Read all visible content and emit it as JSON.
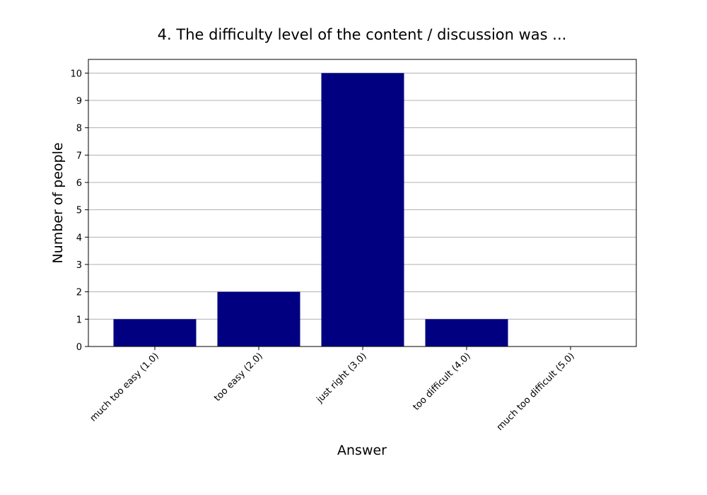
{
  "chart_data": {
    "type": "bar",
    "title": "4. The difficulty level of the content / discussion was ...",
    "xlabel": "Answer",
    "ylabel": "Number of people",
    "categories": [
      "much too easy (1.0)",
      "too easy (2.0)",
      "just right (3.0)",
      "too difficult (4.0)",
      "much too difficult (5.0)"
    ],
    "values": [
      1,
      2,
      10,
      1,
      0
    ],
    "ylim": [
      0,
      10.5
    ],
    "yticks": [
      "0",
      "1",
      "2",
      "3",
      "4",
      "5",
      "6",
      "7",
      "8",
      "9",
      "10"
    ],
    "grid": "horizontal",
    "bar_color": "#000080",
    "grid_color": "#b0b0b0",
    "legend": "none"
  }
}
